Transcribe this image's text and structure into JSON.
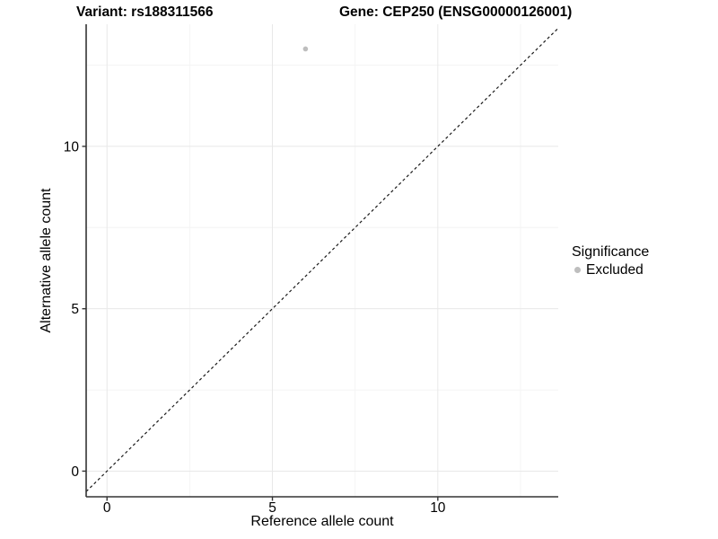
{
  "header": {
    "variant_title": "Variant: rs188311566",
    "gene_title": "Gene: CEP250 (ENSG00000126001)"
  },
  "chart_data": {
    "type": "scatter",
    "title": "Variant: rs188311566    Gene: CEP250 (ENSG00000126001)",
    "xlabel": "Reference allele count",
    "ylabel": "Alternative allele count",
    "xlim": [
      -0.63,
      13.64
    ],
    "ylim": [
      -0.79,
      13.76
    ],
    "x_ticks": [
      0,
      5,
      10
    ],
    "y_ticks": [
      0,
      5,
      10
    ],
    "x_minor_gridlines": [
      2.5,
      7.5,
      12.5
    ],
    "y_minor_gridlines": [
      2.5,
      7.5,
      12.5
    ],
    "grid": "major and minor gridlines on, light grey on white",
    "points": [
      {
        "x": 6,
        "y": 13,
        "significance": "Excluded"
      }
    ],
    "reference_line": {
      "equation": "y = x",
      "style": "dashed",
      "color": "#1a1a1a"
    },
    "legend": {
      "title": "Significance",
      "position": "right",
      "entries": [
        {
          "label": "Excluded",
          "color": "#bebebe",
          "marker": "circle"
        }
      ]
    },
    "style": {
      "point_color": "#bebebe",
      "axis_color": "#333333",
      "grid_major_color": "#e8e8e8",
      "grid_minor_color": "#f4f4f4",
      "tick_label_color": "#000000",
      "tick_label_size": 15.5
    }
  }
}
